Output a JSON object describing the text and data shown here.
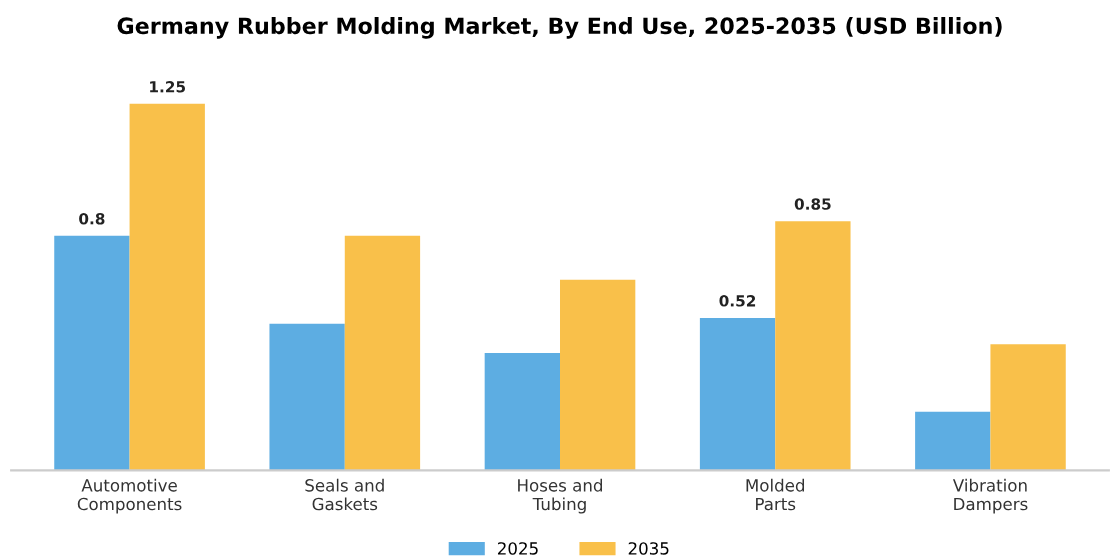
{
  "chart_data": {
    "type": "bar",
    "title": "Germany Rubber Molding Market, By End Use, 2025-2035 (USD Billion)",
    "categories": [
      "Automotive\nComponents",
      "Seals and\nGaskets",
      "Hoses and\nTubing",
      "Molded\nParts",
      "Vibration\nDampers"
    ],
    "series": [
      {
        "name": "2025",
        "color": "#5dade2",
        "values": [
          0.8,
          0.5,
          0.4,
          0.52,
          0.2
        ],
        "value_labels": [
          "0.8",
          null,
          null,
          "0.52",
          null
        ]
      },
      {
        "name": "2035",
        "color": "#f9c04a",
        "values": [
          1.25,
          0.8,
          0.65,
          0.85,
          0.43
        ],
        "value_labels": [
          "1.25",
          null,
          null,
          "0.85",
          null
        ]
      }
    ],
    "relative": false,
    "legend": "bottom"
  }
}
